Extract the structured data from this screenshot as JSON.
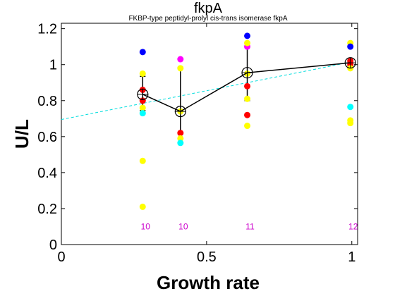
{
  "chart_data": {
    "type": "scatter",
    "title": "fkpA",
    "subtitle": "FKBP-type peptidyl-prolyl cis-trans isomerase fkpA",
    "xlabel": "Growth rate",
    "ylabel": "U/L",
    "xlim": [
      0,
      1.02
    ],
    "ylim": [
      0,
      1.23
    ],
    "xticks": [
      "0",
      "0.5",
      "1"
    ],
    "xtick_values": [
      0,
      0.5,
      1
    ],
    "yticks": [
      "0",
      "0.2",
      "0.4",
      "0.6",
      "0.8",
      "1",
      "1.2"
    ],
    "ytick_values": [
      0,
      0.2,
      0.4,
      0.6,
      0.8,
      1.0,
      1.2
    ],
    "grid": false,
    "points": [
      {
        "x": 0.28,
        "y": 1.07,
        "color": "#0000ff"
      },
      {
        "x": 0.28,
        "y": 0.95,
        "color": "#ffff00"
      },
      {
        "x": 0.28,
        "y": 0.86,
        "color": "#ff0000"
      },
      {
        "x": 0.28,
        "y": 0.8,
        "color": "#ff0000"
      },
      {
        "x": 0.28,
        "y": 0.76,
        "color": "#ffff00"
      },
      {
        "x": 0.28,
        "y": 0.73,
        "color": "#00ffff"
      },
      {
        "x": 0.28,
        "y": 0.465,
        "color": "#ffff00"
      },
      {
        "x": 0.28,
        "y": 0.21,
        "color": "#ffff00"
      },
      {
        "x": 0.41,
        "y": 1.03,
        "color": "#ff00ff"
      },
      {
        "x": 0.41,
        "y": 0.98,
        "color": "#ffff00"
      },
      {
        "x": 0.41,
        "y": 0.74,
        "color": "#ffff00"
      },
      {
        "x": 0.41,
        "y": 0.62,
        "color": "#ff0000"
      },
      {
        "x": 0.41,
        "y": 0.59,
        "color": "#ffff00"
      },
      {
        "x": 0.41,
        "y": 0.565,
        "color": "#00ffff"
      },
      {
        "x": 0.64,
        "y": 1.16,
        "color": "#0000ff"
      },
      {
        "x": 0.64,
        "y": 1.1,
        "color": "#ff00ff"
      },
      {
        "x": 0.64,
        "y": 1.12,
        "color": "#ffff00"
      },
      {
        "x": 0.64,
        "y": 0.95,
        "color": "#ffff00"
      },
      {
        "x": 0.64,
        "y": 0.88,
        "color": "#ff0000"
      },
      {
        "x": 0.64,
        "y": 0.81,
        "color": "#ffff00"
      },
      {
        "x": 0.64,
        "y": 0.72,
        "color": "#ff0000"
      },
      {
        "x": 0.64,
        "y": 0.66,
        "color": "#ffff00"
      },
      {
        "x": 0.995,
        "y": 1.12,
        "color": "#ffff00"
      },
      {
        "x": 0.995,
        "y": 1.1,
        "color": "#0000ff"
      },
      {
        "x": 0.995,
        "y": 1.02,
        "color": "#ff0000"
      },
      {
        "x": 0.995,
        "y": 1.0,
        "color": "#ff0000"
      },
      {
        "x": 0.995,
        "y": 0.98,
        "color": "#ffff00"
      },
      {
        "x": 0.995,
        "y": 0.765,
        "color": "#00ffff"
      },
      {
        "x": 0.995,
        "y": 0.69,
        "color": "#ffff00"
      },
      {
        "x": 0.995,
        "y": 0.675,
        "color": "#ffff00"
      }
    ],
    "mean_line": {
      "color": "#000000",
      "x": [
        0.28,
        0.41,
        0.64,
        0.995
      ],
      "y": [
        0.835,
        0.74,
        0.955,
        1.01
      ],
      "err_low": [
        0.745,
        0.62,
        0.8,
        0.995
      ],
      "err_high": [
        0.935,
        0.985,
        1.1,
        1.03
      ]
    },
    "fit_line": {
      "color": "#00dddd",
      "x": [
        0,
        1.0
      ],
      "y": [
        0.695,
        1.015
      ]
    },
    "counts": [
      {
        "x": 0.28,
        "label": "10"
      },
      {
        "x": 0.41,
        "label": "10"
      },
      {
        "x": 0.64,
        "label": "11"
      },
      {
        "x": 0.995,
        "label": "12"
      }
    ],
    "counts_y": 0.1
  }
}
